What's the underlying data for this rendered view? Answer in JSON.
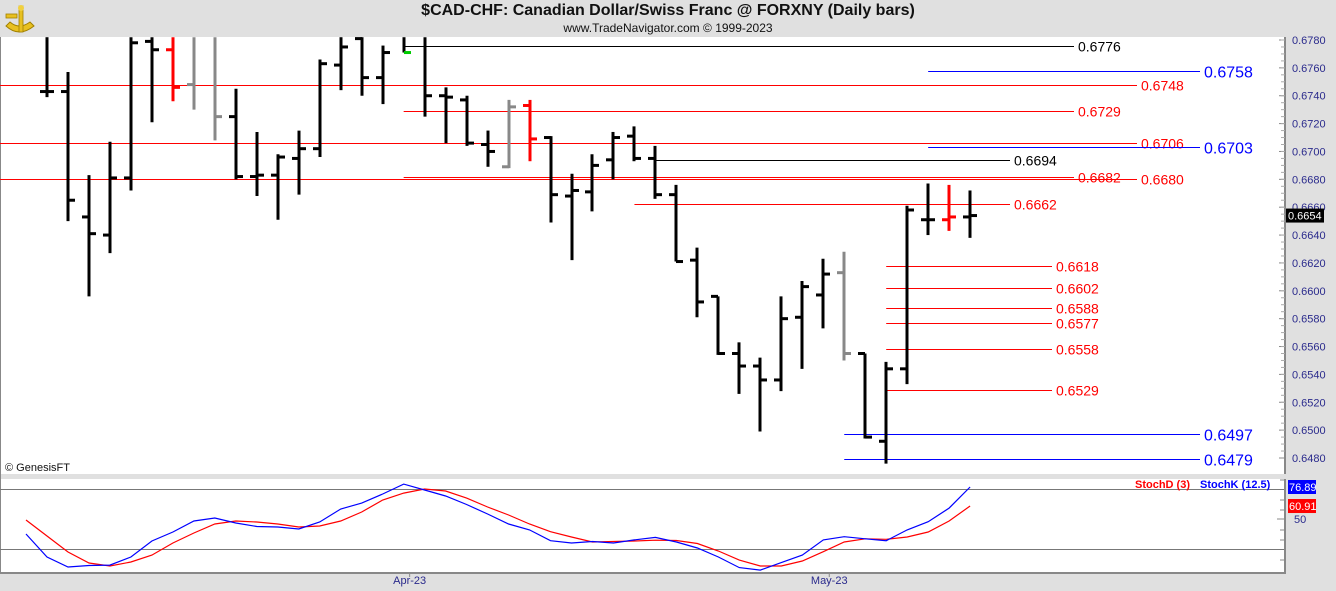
{
  "header": {
    "title": "$CAD-CHF:  Canadian Dollar/Swiss Franc @ FORXNY  (Daily bars)",
    "subtitle": "www.TradeNavigator.com © 1999-2023",
    "logo_icon": "sextant-icon"
  },
  "footer": {
    "copyright": "© GenesisFT"
  },
  "colors": {
    "up": "#000000",
    "red": "#ff0000",
    "gray": "#888888",
    "blue": "#0000ff",
    "axis_text": "#2a2a8c",
    "marker_green": "#00cc00"
  },
  "chart_data": [
    {
      "type": "ohlc",
      "title": "$CAD-CHF Daily bars",
      "ylim": [
        0.6475,
        0.6782
      ],
      "y_ticks": [
        "0.6780",
        "0.6760",
        "0.6740",
        "0.6720",
        "0.6700",
        "0.6680",
        "0.6660",
        "0.6640",
        "0.6620",
        "0.6600",
        "0.6580",
        "0.6560",
        "0.6540",
        "0.6520",
        "0.6500",
        "0.6480"
      ],
      "x_labels": [
        {
          "label": "Apr-23",
          "bar": 17
        },
        {
          "label": "May-23",
          "bar": 37
        }
      ],
      "last_price": "0.6654",
      "bars": [
        {
          "o": 0.6743,
          "h": 0.6782,
          "l": 0.6739,
          "c": 0.6743
        },
        {
          "o": 0.6743,
          "h": 0.6757,
          "l": 0.665,
          "c": 0.6665
        },
        {
          "o": 0.6653,
          "h": 0.6683,
          "l": 0.6596,
          "c": 0.6641
        },
        {
          "o": 0.664,
          "h": 0.6707,
          "l": 0.6627,
          "c": 0.6681
        },
        {
          "o": 0.6681,
          "h": 0.6782,
          "l": 0.6672,
          "c": 0.6778
        },
        {
          "o": 0.6779,
          "h": 0.6782,
          "l": 0.6721,
          "c": 0.6773
        },
        {
          "o": 0.6773,
          "h": 0.6782,
          "l": 0.6736,
          "c": 0.6746,
          "color": "red"
        },
        {
          "o": 0.6748,
          "h": 0.6782,
          "l": 0.673,
          "c": null,
          "color": "gray"
        },
        {
          "o": null,
          "h": 0.6782,
          "l": 0.6708,
          "c": 0.6725,
          "color": "gray"
        },
        {
          "o": 0.6725,
          "h": 0.6745,
          "l": 0.668,
          "c": 0.6682
        },
        {
          "o": 0.6682,
          "h": 0.6714,
          "l": 0.6668,
          "c": 0.6683
        },
        {
          "o": 0.6683,
          "h": 0.6698,
          "l": 0.6651,
          "c": 0.6696
        },
        {
          "o": 0.6695,
          "h": 0.6715,
          "l": 0.6669,
          "c": 0.6702
        },
        {
          "o": 0.6702,
          "h": 0.6766,
          "l": 0.6696,
          "c": 0.6763
        },
        {
          "o": 0.6762,
          "h": 0.6782,
          "l": 0.6744,
          "c": 0.6775
        },
        {
          "o": 0.6781,
          "h": 0.6782,
          "l": 0.674,
          "c": 0.6753
        },
        {
          "o": 0.6753,
          "h": 0.6776,
          "l": 0.6734,
          "c": 0.6771
        },
        {
          "o": null,
          "h": 0.6782,
          "l": 0.6771,
          "c": 0.6771,
          "marker": "green"
        },
        {
          "o": null,
          "h": 0.6782,
          "l": 0.6725,
          "c": 0.674
        },
        {
          "o": 0.674,
          "h": 0.6746,
          "l": 0.6706,
          "c": 0.6739
        },
        {
          "o": 0.6737,
          "h": 0.674,
          "l": 0.6704,
          "c": 0.6706
        },
        {
          "o": 0.6705,
          "h": 0.6715,
          "l": 0.6689,
          "c": 0.67
        },
        {
          "o": 0.6689,
          "h": 0.6737,
          "l": 0.6688,
          "c": 0.6732,
          "color": "gray"
        },
        {
          "o": 0.6733,
          "h": 0.6737,
          "l": 0.6693,
          "c": 0.6709,
          "color": "red"
        },
        {
          "o": 0.671,
          "h": 0.6711,
          "l": 0.6649,
          "c": 0.6669
        },
        {
          "o": 0.6668,
          "h": 0.6684,
          "l": 0.6622,
          "c": 0.6672
        },
        {
          "o": 0.6671,
          "h": 0.6698,
          "l": 0.6657,
          "c": 0.669
        },
        {
          "o": 0.6694,
          "h": 0.6714,
          "l": 0.668,
          "c": 0.671
        },
        {
          "o": 0.6711,
          "h": 0.6718,
          "l": 0.6693,
          "c": 0.6695
        },
        {
          "o": 0.6695,
          "h": 0.6704,
          "l": 0.6666,
          "c": 0.6669
        },
        {
          "o": 0.6669,
          "h": 0.6676,
          "l": 0.6621,
          "c": 0.6621
        },
        {
          "o": 0.6622,
          "h": 0.6631,
          "l": 0.6581,
          "c": 0.6592
        },
        {
          "o": 0.6596,
          "h": 0.6596,
          "l": 0.6554,
          "c": 0.6555
        },
        {
          "o": 0.6555,
          "h": 0.6563,
          "l": 0.6526,
          "c": 0.6546
        },
        {
          "o": 0.6546,
          "h": 0.6552,
          "l": 0.6499,
          "c": 0.6536
        },
        {
          "o": 0.6536,
          "h": 0.6596,
          "l": 0.6528,
          "c": 0.658
        },
        {
          "o": 0.6581,
          "h": 0.6607,
          "l": 0.6544,
          "c": 0.6603
        },
        {
          "o": 0.6597,
          "h": 0.6623,
          "l": 0.6573,
          "c": 0.6612
        },
        {
          "o": 0.6613,
          "h": 0.6628,
          "l": 0.655,
          "c": 0.6555,
          "color": "gray"
        },
        {
          "o": 0.6555,
          "h": 0.6555,
          "l": 0.6494,
          "c": 0.6495
        },
        {
          "o": 0.6492,
          "h": 0.6549,
          "l": 0.6476,
          "c": 0.6544
        },
        {
          "o": 0.6544,
          "h": 0.6661,
          "l": 0.6533,
          "c": 0.6658
        },
        {
          "o": 0.6651,
          "h": 0.6677,
          "l": 0.664,
          "c": 0.6651
        },
        {
          "o": 0.6651,
          "h": 0.6676,
          "l": 0.6643,
          "c": 0.6653,
          "color": "red"
        },
        {
          "o": 0.6653,
          "h": 0.6672,
          "l": 0.6638,
          "c": 0.6654
        }
      ],
      "levels": [
        {
          "label": "0.6776",
          "value": 0.6776,
          "color": "#000000",
          "start_bar": 17
        },
        {
          "label": "0.6758",
          "value": 0.6758,
          "color": "#0000ff",
          "start_bar": 42
        },
        {
          "label": "0.6748",
          "value": 0.6748,
          "color": "#ff0000",
          "start_bar": -3
        },
        {
          "label": "0.6729",
          "value": 0.6729,
          "color": "#ff0000",
          "start_bar": 17
        },
        {
          "label": "0.6706",
          "value": 0.6706,
          "color": "#ff0000",
          "start_bar": -3
        },
        {
          "label": "0.6703",
          "value": 0.6703,
          "color": "#0000ff",
          "start_bar": 42
        },
        {
          "label": "0.6694",
          "value": 0.6694,
          "color": "#000000",
          "start_bar": 29
        },
        {
          "label": "0.6682",
          "value": 0.6682,
          "color": "#ff0000",
          "start_bar": 17
        },
        {
          "label": "0.6680",
          "value": 0.668,
          "color": "#ff0000",
          "start_bar": -3
        },
        {
          "label": "0.6662",
          "value": 0.6662,
          "color": "#ff0000",
          "start_bar": 28
        },
        {
          "label": "0.6618",
          "value": 0.6618,
          "color": "#ff0000",
          "start_bar": 40
        },
        {
          "label": "0.6602",
          "value": 0.6602,
          "color": "#ff0000",
          "start_bar": 40
        },
        {
          "label": "0.6588",
          "value": 0.6588,
          "color": "#ff0000",
          "start_bar": 40
        },
        {
          "label": "0.6577",
          "value": 0.6577,
          "color": "#ff0000",
          "start_bar": 40
        },
        {
          "label": "0.6558",
          "value": 0.6558,
          "color": "#ff0000",
          "start_bar": 40
        },
        {
          "label": "0.6529",
          "value": 0.6529,
          "color": "#ff0000",
          "start_bar": 40
        },
        {
          "label": "0.6497",
          "value": 0.6497,
          "color": "#0000ff",
          "start_bar": 38
        },
        {
          "label": "0.6479",
          "value": 0.6479,
          "color": "#0000ff",
          "start_bar": 38
        }
      ]
    },
    {
      "type": "line",
      "title": "Stochastic",
      "first_bar": -1,
      "gridlines": [
        75,
        25
      ],
      "y_tick_label": "50",
      "series": [
        {
          "name": "StochD (3)",
          "color": "#ff0000",
          "last": "60.91",
          "values": [
            49.2,
            35.7,
            22.3,
            13.0,
            10.5,
            13.9,
            19.7,
            29.8,
            38.2,
            45.8,
            48.3,
            47.5,
            45.8,
            43.3,
            44.1,
            48.3,
            55.9,
            66.0,
            71.8,
            75.2,
            73.5,
            67.6,
            60.1,
            53.4,
            45.8,
            39.3,
            34.9,
            30.7,
            31.1,
            31.5,
            32.2,
            31.9,
            29.4,
            23.1,
            15.5,
            10.5,
            10.5,
            14.7,
            22.5,
            30.7,
            33.4,
            32.9,
            34.9,
            39.1,
            48.3,
            60.91
          ]
        },
        {
          "name": "StochK (12.5)",
          "color": "#0000ff",
          "last": "76.89",
          "values": [
            37.4,
            18.1,
            9.7,
            10.9,
            11.3,
            18.1,
            31.5,
            39.1,
            48.3,
            50.8,
            46.6,
            43.7,
            43.3,
            41.6,
            47.5,
            58.4,
            63.4,
            71.0,
            79.3,
            74.4,
            69.3,
            62.2,
            54.2,
            45.8,
            40.8,
            31.8,
            29.8,
            31.1,
            29.8,
            32.4,
            34.5,
            30.7,
            25.6,
            18.1,
            9.2,
            7.1,
            13.4,
            19.7,
            32.4,
            35.1,
            33.4,
            31.8,
            40.8,
            47.7,
            59.2,
            76.89
          ]
        }
      ]
    }
  ]
}
